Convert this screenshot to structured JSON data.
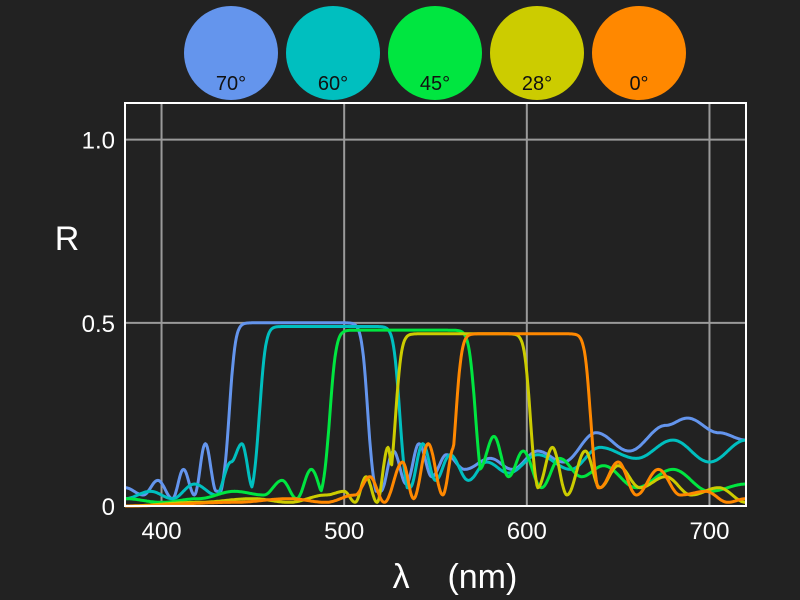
{
  "chart_data": {
    "type": "line",
    "xlabel": "λ    (nm)",
    "ylabel": "R",
    "xlim": [
      380,
      720
    ],
    "ylim": [
      0,
      1.1
    ],
    "xticks": [
      400,
      500,
      600,
      700
    ],
    "ytick_values": [
      0,
      0.5,
      1.0
    ],
    "ytick_labels": [
      "0",
      "0.5",
      "1.0"
    ],
    "grid": true,
    "legend_position": "top",
    "series": [
      {
        "name": "70°",
        "color": "#6495ED",
        "center": 475,
        "width": 76,
        "peak": 0.5,
        "osc": [
          [
            380,
            0.05
          ],
          [
            390,
            0.03
          ],
          [
            398,
            0.07
          ],
          [
            406,
            0.02
          ],
          [
            412,
            0.1
          ],
          [
            418,
            0.03
          ],
          [
            424,
            0.17
          ],
          [
            430,
            0.04
          ],
          [
            520,
            0.04
          ],
          [
            527,
            0.15
          ],
          [
            534,
            0.06
          ],
          [
            541,
            0.17
          ],
          [
            548,
            0.08
          ],
          [
            556,
            0.14
          ],
          [
            566,
            0.1
          ],
          [
            580,
            0.13
          ],
          [
            592,
            0.1
          ],
          [
            606,
            0.15
          ],
          [
            620,
            0.12
          ],
          [
            638,
            0.2
          ],
          [
            656,
            0.15
          ],
          [
            676,
            0.22
          ],
          [
            688,
            0.24
          ],
          [
            705,
            0.2
          ],
          [
            720,
            0.18
          ]
        ]
      },
      {
        "name": "60°",
        "color": "#00BFBF",
        "center": 492,
        "width": 77,
        "peak": 0.49,
        "osc": [
          [
            380,
            0.02
          ],
          [
            394,
            0.04
          ],
          [
            406,
            0.02
          ],
          [
            418,
            0.06
          ],
          [
            430,
            0.03
          ],
          [
            438,
            0.12
          ],
          [
            444,
            0.17
          ],
          [
            450,
            0.05
          ],
          [
            536,
            0.05
          ],
          [
            543,
            0.17
          ],
          [
            550,
            0.07
          ],
          [
            558,
            0.14
          ],
          [
            568,
            0.07
          ],
          [
            578,
            0.12
          ],
          [
            590,
            0.09
          ],
          [
            606,
            0.14
          ],
          [
            624,
            0.1
          ],
          [
            640,
            0.16
          ],
          [
            660,
            0.13
          ],
          [
            680,
            0.18
          ],
          [
            700,
            0.12
          ],
          [
            720,
            0.18
          ]
        ]
      },
      {
        "name": "45°",
        "color": "#00E640",
        "center": 532,
        "width": 80,
        "peak": 0.48,
        "osc": [
          [
            380,
            0.02
          ],
          [
            400,
            0.01
          ],
          [
            420,
            0.02
          ],
          [
            440,
            0.04
          ],
          [
            456,
            0.03
          ],
          [
            466,
            0.07
          ],
          [
            474,
            0.02
          ],
          [
            482,
            0.1
          ],
          [
            490,
            0.02
          ],
          [
            498,
            0.16
          ],
          [
            506,
            0.02
          ],
          [
            514,
            0.2
          ],
          [
            520,
            0.12
          ],
          [
            574,
            0.1
          ],
          [
            582,
            0.19
          ],
          [
            590,
            0.08
          ],
          [
            598,
            0.15
          ],
          [
            608,
            0.05
          ],
          [
            618,
            0.13
          ],
          [
            630,
            0.08
          ],
          [
            642,
            0.11
          ],
          [
            660,
            0.05
          ],
          [
            680,
            0.1
          ],
          [
            700,
            0.04
          ],
          [
            720,
            0.06
          ]
        ]
      },
      {
        "name": "28°",
        "color": "#CCCC00",
        "center": 565,
        "width": 74,
        "peak": 0.47,
        "osc": [
          [
            380,
            0.0
          ],
          [
            420,
            0.01
          ],
          [
            450,
            0.02
          ],
          [
            470,
            0.01
          ],
          [
            490,
            0.03
          ],
          [
            500,
            0.04
          ],
          [
            506,
            0.01
          ],
          [
            512,
            0.08
          ],
          [
            518,
            0.01
          ],
          [
            524,
            0.16
          ],
          [
            528,
            0.02
          ],
          [
            606,
            0.05
          ],
          [
            614,
            0.16
          ],
          [
            622,
            0.03
          ],
          [
            632,
            0.15
          ],
          [
            640,
            0.05
          ],
          [
            650,
            0.11
          ],
          [
            662,
            0.05
          ],
          [
            676,
            0.08
          ],
          [
            690,
            0.03
          ],
          [
            705,
            0.05
          ],
          [
            720,
            0.01
          ]
        ]
      },
      {
        "name": "0°",
        "color": "#FF8800",
        "center": 598,
        "width": 74,
        "peak": 0.47,
        "osc": [
          [
            380,
            0.0
          ],
          [
            440,
            0.01
          ],
          [
            470,
            0.02
          ],
          [
            490,
            0.01
          ],
          [
            506,
            0.03
          ],
          [
            514,
            0.08
          ],
          [
            522,
            0.01
          ],
          [
            532,
            0.12
          ],
          [
            538,
            0.02
          ],
          [
            546,
            0.17
          ],
          [
            554,
            0.03
          ],
          [
            560,
            0.16
          ],
          [
            640,
            0.05
          ],
          [
            650,
            0.12
          ],
          [
            660,
            0.03
          ],
          [
            672,
            0.1
          ],
          [
            684,
            0.03
          ],
          [
            698,
            0.04
          ],
          [
            710,
            0.01
          ],
          [
            720,
            0.02
          ]
        ]
      }
    ]
  }
}
